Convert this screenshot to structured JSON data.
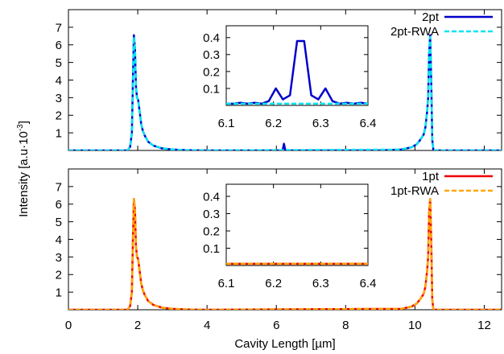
{
  "figure": {
    "ylabel": "Intensity [a.u·10",
    "ylabel_exp": "-3",
    "ylabel_close": "]",
    "xlabel": "Cavity Length [µm]"
  },
  "chart_data": [
    {
      "type": "line",
      "panel": "top",
      "xlim": [
        0,
        12.5
      ],
      "ylim": [
        0,
        8
      ],
      "xticks": [
        0,
        2,
        4,
        6,
        8,
        10,
        12
      ],
      "yticks": [
        1,
        2,
        3,
        4,
        5,
        6,
        7
      ],
      "legend": "top-right",
      "grid": false,
      "series": [
        {
          "name": "2pt",
          "color": "#0000cc",
          "style": "solid",
          "x": [
            0,
            1.7,
            1.78,
            1.83,
            1.86,
            1.89,
            1.92,
            1.95,
            1.98,
            2.01,
            2.05,
            2.1,
            2.15,
            2.2,
            2.3,
            2.45,
            2.7,
            3.0,
            3.4,
            4.0,
            5.0,
            6.1,
            6.18,
            6.22,
            6.26,
            6.35,
            7.0,
            8.0,
            9.0,
            9.6,
            9.9,
            10.05,
            10.15,
            10.25,
            10.3,
            10.35,
            10.38,
            10.41,
            10.44,
            10.47,
            10.5,
            10.53,
            10.58,
            10.65,
            11.0,
            12.5
          ],
          "y": [
            0,
            0,
            0.2,
            1.0,
            4.0,
            6.55,
            5.8,
            3.6,
            3.0,
            2.9,
            2.3,
            1.5,
            1.1,
            0.85,
            0.5,
            0.28,
            0.12,
            0.05,
            0.02,
            0,
            0,
            0,
            0,
            0.38,
            0,
            0,
            0,
            0,
            0,
            0.05,
            0.18,
            0.35,
            0.6,
            0.9,
            1.3,
            2.2,
            3.0,
            5.5,
            6.55,
            4.0,
            0.6,
            0.05,
            0,
            0,
            0,
            0
          ]
        },
        {
          "name": "2pt-RWA",
          "color": "#00e5ee",
          "style": "dashed",
          "x": [
            0,
            1.7,
            1.78,
            1.83,
            1.86,
            1.89,
            1.92,
            1.95,
            1.98,
            2.01,
            2.05,
            2.1,
            2.15,
            2.2,
            2.3,
            2.45,
            2.7,
            3.0,
            3.4,
            4.0,
            9.6,
            9.9,
            10.05,
            10.15,
            10.25,
            10.3,
            10.35,
            10.38,
            10.41,
            10.44,
            10.47,
            10.5,
            10.53,
            10.58,
            12.5
          ],
          "y": [
            0,
            0,
            0.2,
            1.0,
            4.0,
            6.45,
            5.8,
            3.6,
            3.0,
            2.9,
            2.3,
            1.5,
            1.1,
            0.85,
            0.5,
            0.28,
            0.12,
            0.05,
            0.02,
            0,
            0.05,
            0.18,
            0.35,
            0.6,
            0.9,
            1.3,
            2.2,
            3.0,
            5.5,
            6.45,
            4.0,
            0.6,
            0.05,
            0,
            0
          ]
        }
      ],
      "inset": {
        "xlim": [
          6.1,
          6.4
        ],
        "ylim": [
          0,
          0.47
        ],
        "xticks": [
          6.1,
          6.2,
          6.3,
          6.4
        ],
        "yticks": [
          0.1,
          0.2,
          0.3,
          0.4
        ],
        "series": [
          {
            "name": "2pt",
            "color": "#0000cc",
            "style": "solid",
            "x": [
              6.1,
              6.115,
              6.13,
              6.145,
              6.16,
              6.175,
              6.19,
              6.205,
              6.22,
              6.235,
              6.25,
              6.265,
              6.28,
              6.295,
              6.31,
              6.325,
              6.34,
              6.355,
              6.37,
              6.385,
              6.4
            ],
            "y": [
              0.01,
              0.01,
              0.015,
              0.01,
              0.015,
              0.01,
              0.025,
              0.1,
              0.035,
              0.06,
              0.38,
              0.38,
              0.06,
              0.035,
              0.1,
              0.025,
              0.01,
              0.015,
              0.01,
              0.015,
              0.01
            ]
          },
          {
            "name": "2pt-RWA",
            "color": "#00e5ee",
            "style": "dashed",
            "x": [
              6.1,
              6.4
            ],
            "y": [
              0.01,
              0.01
            ]
          }
        ]
      }
    },
    {
      "type": "line",
      "panel": "bottom",
      "xlim": [
        0,
        12.5
      ],
      "ylim": [
        0,
        8
      ],
      "xticks": [
        0,
        2,
        4,
        6,
        8,
        10,
        12
      ],
      "yticks": [
        1,
        2,
        3,
        4,
        5,
        6,
        7
      ],
      "legend": "top-right",
      "grid": false,
      "series": [
        {
          "name": "1pt",
          "color": "#ee0000",
          "style": "solid",
          "x": [
            0,
            1.7,
            1.78,
            1.83,
            1.86,
            1.89,
            1.92,
            1.95,
            1.98,
            2.01,
            2.05,
            2.1,
            2.15,
            2.2,
            2.3,
            2.45,
            2.7,
            3.0,
            3.4,
            4.0,
            9.6,
            9.9,
            10.05,
            10.15,
            10.25,
            10.3,
            10.35,
            10.38,
            10.41,
            10.44,
            10.47,
            10.5,
            10.53,
            10.58,
            12.5
          ],
          "y": [
            0,
            0,
            0.2,
            1.0,
            4.0,
            6.3,
            5.7,
            3.6,
            3.0,
            2.9,
            2.3,
            1.5,
            1.1,
            0.85,
            0.5,
            0.28,
            0.12,
            0.05,
            0.02,
            0,
            0.05,
            0.18,
            0.35,
            0.6,
            0.9,
            1.3,
            2.2,
            3.0,
            5.5,
            6.3,
            4.0,
            0.6,
            0.05,
            0,
            0
          ]
        },
        {
          "name": "1pt-RWA",
          "color": "#ffa500",
          "style": "dashed",
          "x": [
            0,
            1.7,
            1.78,
            1.83,
            1.86,
            1.89,
            1.92,
            1.95,
            1.98,
            2.01,
            2.05,
            2.1,
            2.15,
            2.2,
            2.3,
            2.45,
            2.7,
            3.0,
            3.4,
            4.0,
            9.6,
            9.9,
            10.05,
            10.15,
            10.25,
            10.3,
            10.35,
            10.38,
            10.41,
            10.44,
            10.47,
            10.5,
            10.53,
            10.58,
            12.5
          ],
          "y": [
            0,
            0,
            0.2,
            1.0,
            4.0,
            6.3,
            5.7,
            3.6,
            3.0,
            2.9,
            2.3,
            1.5,
            1.1,
            0.85,
            0.5,
            0.28,
            0.12,
            0.05,
            0.02,
            0,
            0.05,
            0.18,
            0.35,
            0.6,
            0.9,
            1.3,
            2.2,
            3.0,
            5.5,
            6.3,
            4.0,
            0.6,
            0.05,
            0,
            0
          ]
        }
      ],
      "inset": {
        "xlim": [
          6.1,
          6.4
        ],
        "ylim": [
          0,
          0.47
        ],
        "xticks": [
          6.1,
          6.2,
          6.3,
          6.4
        ],
        "yticks": [
          0.1,
          0.2,
          0.3,
          0.4
        ],
        "series": [
          {
            "name": "1pt",
            "color": "#ee0000",
            "style": "solid",
            "x": [
              6.1,
              6.4
            ],
            "y": [
              0.01,
              0.01
            ]
          },
          {
            "name": "1pt-RWA",
            "color": "#ffa500",
            "style": "dashed",
            "x": [
              6.1,
              6.4
            ],
            "y": [
              0.01,
              0.01
            ]
          }
        ]
      }
    }
  ]
}
